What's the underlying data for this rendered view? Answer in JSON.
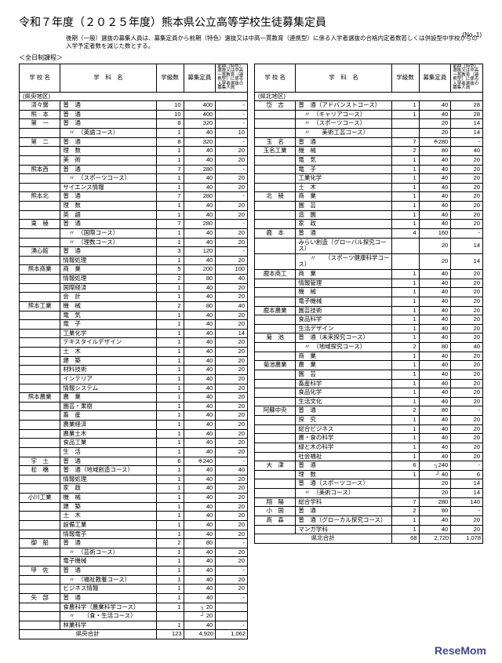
{
  "title": "令和７年度（２０２５年度）熊本県公立高等学校生徒募集定員",
  "page_number": "(No. 1)",
  "subtitle": "後期（一般）選抜の募集人員は、募集定員から前期（特色）選抜又は中高一貫教育（連携型）に係る入学者選抜の合格内定者数若しくは併設型中学校からの入学予定者数を減じた数とする。",
  "section_label": "＜全日制課程＞",
  "headers": {
    "school": "学 校 名",
    "dept": "学　科　名",
    "classes": "学級数",
    "capacity": "募集定員",
    "notes": "前期（特色）選抜又は中高一貫教育（連携型）に係る入学者選抜の募集人員"
  },
  "branding": "ReseMom",
  "left": {
    "district": "(県央地区)",
    "rows": [
      [
        "済々黌",
        "普　通",
        "10",
        "400",
        "-"
      ],
      [
        "熊　本",
        "普　通",
        "10",
        "400",
        "-"
      ],
      [
        "第　一",
        "普　通",
        "8",
        "320",
        "-"
      ],
      [
        "",
        "　〃　（英語コース）",
        "1",
        "40",
        "10"
      ],
      [
        "第　二",
        "普　通",
        "8",
        "320",
        "-"
      ],
      [
        "",
        "理　数",
        "1",
        "40",
        "20"
      ],
      [
        "",
        "美　術",
        "1",
        "40",
        "20"
      ],
      [
        "熊本西",
        "普　通",
        "7",
        "280",
        "-"
      ],
      [
        "",
        "　〃　（スポーツコース）",
        "1",
        "40",
        "20"
      ],
      [
        "",
        "サイエンス情報",
        "1",
        "40",
        "20"
      ],
      [
        "熊本北",
        "普　通",
        "7",
        "280",
        "-"
      ],
      [
        "",
        "理　数",
        "1",
        "40",
        "20"
      ],
      [
        "",
        "英　語",
        "1",
        "40",
        "20"
      ],
      [
        "東　稜",
        "普　通",
        "7",
        "280",
        "-"
      ],
      [
        "",
        "　〃　（国際コース）",
        "1",
        "40",
        "20"
      ],
      [
        "",
        "　〃　（理数コース）",
        "1",
        "40",
        "20"
      ],
      [
        "湧心館",
        "普　通",
        "3",
        "120",
        "-"
      ],
      [
        "",
        "情報処理",
        "1",
        "40",
        "20"
      ],
      [
        "熊本商業",
        "商　業",
        "5",
        "200",
        "100"
      ],
      [
        "",
        "情報処理",
        "2",
        "80",
        "40"
      ],
      [
        "",
        "国際経済",
        "1",
        "40",
        "20"
      ],
      [
        "",
        "会　計",
        "1",
        "40",
        "20"
      ],
      [
        "熊本工業",
        "機　械",
        "2",
        "80",
        "40"
      ],
      [
        "",
        "電　気",
        "1",
        "40",
        "20"
      ],
      [
        "",
        "電　子",
        "1",
        "40",
        "20"
      ],
      [
        "",
        "工業化学",
        "1",
        "40",
        "14"
      ],
      [
        "",
        "テキスタイルデザイン",
        "1",
        "40",
        "20"
      ],
      [
        "",
        "土　木",
        "1",
        "40",
        "20"
      ],
      [
        "",
        "建　築",
        "1",
        "40",
        "20"
      ],
      [
        "",
        "材料技術",
        "1",
        "40",
        "20"
      ],
      [
        "",
        "インテリア",
        "1",
        "40",
        "20"
      ],
      [
        "",
        "情報システム",
        "1",
        "40",
        "20"
      ],
      [
        "熊本農業",
        "農　業",
        "1",
        "40",
        "20"
      ],
      [
        "",
        "園芸・果樹",
        "1",
        "40",
        "20"
      ],
      [
        "",
        "畜　産",
        "1",
        "40",
        "20"
      ],
      [
        "",
        "農業経済",
        "1",
        "40",
        "20"
      ],
      [
        "",
        "農業土木",
        "1",
        "40",
        "20"
      ],
      [
        "",
        "食品工業",
        "1",
        "40",
        "20"
      ],
      [
        "",
        "生　活",
        "1",
        "40",
        "20"
      ],
      [
        "宇　土",
        "普　通",
        "6",
        "※240",
        "-"
      ],
      [
        "松　橋",
        "普　通（地域創造コース）",
        "1",
        "40",
        "40"
      ],
      [
        "",
        "情報処理",
        "1",
        "40",
        "20"
      ],
      [
        "",
        "家　政",
        "1",
        "40",
        "20"
      ],
      [
        "小川工業",
        "機　械",
        "1",
        "40",
        "20"
      ],
      [
        "",
        "建　築",
        "1",
        "40",
        "20"
      ],
      [
        "",
        "土　木",
        "1",
        "40",
        "20"
      ],
      [
        "",
        "設備工業",
        "1",
        "40",
        "20"
      ],
      [
        "",
        "情報電子",
        "1",
        "40",
        "20"
      ],
      [
        "御　船",
        "普　通",
        "2",
        "80",
        "-"
      ],
      [
        "",
        "　〃　（芸術コース）",
        "1",
        "40",
        "20"
      ],
      [
        "",
        "電子機械",
        "1",
        "40",
        "20"
      ],
      [
        "甲　佐",
        "普　通",
        "1",
        "40",
        "-"
      ],
      [
        "",
        "　〃　（福祉教養コース）",
        "1",
        "40",
        "20"
      ],
      [
        "",
        "ビジネス情報",
        "1",
        "40",
        "20"
      ],
      [
        "矢　部",
        "普　通",
        "1",
        "40",
        "-"
      ],
      [
        "",
        "食農科学（農業科学コース）",
        "1",
        "┐ 20",
        ""
      ],
      [
        "",
        "　〃　　（食・生活コース）",
        "",
        "┘ 20",
        ""
      ],
      [
        "",
        "林業科学",
        "1",
        "40",
        "-"
      ]
    ],
    "total": [
      "県央合計",
      "",
      "123",
      "4,920",
      "1,062"
    ]
  },
  "right": {
    "district": "(県北地区)",
    "rows": [
      [
        "岱　志",
        "普　通（アドバンストコース）",
        "1",
        "40",
        "28"
      ],
      [
        "",
        "　〃　（キャリアコース）",
        "1",
        "40",
        "28"
      ],
      [
        "",
        "　〃　（スポーツコース）",
        "",
        "20",
        "14"
      ],
      [
        "",
        "　〃　　美術工芸コース）",
        "",
        "20",
        "14"
      ],
      [
        "玉　名",
        "普　通",
        "7",
        "※280",
        "-"
      ],
      [
        "玉名工業",
        "機　械",
        "2",
        "80",
        "40"
      ],
      [
        "",
        "電　気",
        "1",
        "40",
        "20"
      ],
      [
        "",
        "電　子",
        "1",
        "40",
        "20"
      ],
      [
        "",
        "工業化学",
        "1",
        "40",
        "20"
      ],
      [
        "",
        "土　木",
        "1",
        "40",
        "20"
      ],
      [
        "北　稜",
        "商　業",
        "1",
        "40",
        "20"
      ],
      [
        "",
        "園　芸",
        "1",
        "40",
        "20"
      ],
      [
        "",
        "造　園",
        "1",
        "40",
        "20"
      ],
      [
        "",
        "家　政",
        "1",
        "40",
        "20"
      ],
      [
        "鹿　本",
        "普　通",
        "4",
        "160",
        "-"
      ],
      [
        "",
        "みらい創造（グローバル探究コース）",
        "",
        "20",
        "14"
      ],
      [
        "",
        "　　〃　　（スポーツ健康科学コース）",
        "",
        "20",
        "14"
      ],
      [
        "鹿本商工",
        "商　業",
        "1",
        "40",
        "20"
      ],
      [
        "",
        "情報管理",
        "1",
        "40",
        "20"
      ],
      [
        "",
        "機　械",
        "1",
        "40",
        "20"
      ],
      [
        "",
        "電子機械",
        "1",
        "40",
        "20"
      ],
      [
        "鹿本農業",
        "園芸技術",
        "1",
        "40",
        "20"
      ],
      [
        "",
        "食品科学",
        "1",
        "40",
        "20"
      ],
      [
        "",
        "生活デザイン",
        "1",
        "40",
        "20"
      ],
      [
        "菊　池",
        "普　通（未来探究コース）",
        "1",
        "40",
        "20"
      ],
      [
        "",
        "　〃　（地域探究コース）",
        "2",
        "80",
        "40"
      ],
      [
        "",
        "商　業",
        "1",
        "40",
        "20"
      ],
      [
        "菊池農業",
        "農　業",
        "1",
        "40",
        "20"
      ],
      [
        "",
        "園　芸",
        "1",
        "40",
        "20"
      ],
      [
        "",
        "畜産科学",
        "1",
        "40",
        "20"
      ],
      [
        "",
        "食品化学",
        "1",
        "40",
        "20"
      ],
      [
        "",
        "生活文化",
        "1",
        "40",
        "20"
      ],
      [
        "阿蘇中央",
        "普　通",
        "2",
        "80",
        "-"
      ],
      [
        "",
        "探　究",
        "1",
        "40",
        "20"
      ],
      [
        "",
        "総合ビジネス",
        "1",
        "40",
        "20"
      ],
      [
        "",
        "農・食の科学",
        "1",
        "40",
        "20"
      ],
      [
        "",
        "緑と木の科学",
        "1",
        "40",
        "20"
      ],
      [
        "",
        "社会福祉",
        "1",
        "40",
        "20"
      ],
      [
        "大　津",
        "普　通",
        "6",
        "┐240",
        "-"
      ],
      [
        "",
        "理　数",
        "1",
        "┘ 40",
        "6"
      ],
      [
        "",
        "普　通（スポーツコース）",
        "",
        "20",
        "14"
      ],
      [
        "",
        "　〃　（美術コース）",
        "",
        "20",
        "14"
      ],
      [
        "翔　陽",
        "総合学科",
        "7",
        "280",
        "140"
      ],
      [
        "小　国",
        "普　通",
        "2",
        "80",
        "-"
      ],
      [
        "高　森",
        "普　通（グローカル探究コース）",
        "1",
        "40",
        "20"
      ],
      [
        "",
        "マンガ学科",
        "1",
        "40",
        "20"
      ]
    ],
    "total": [
      "県北合計",
      "",
      "68",
      "2,720",
      "1,078"
    ]
  }
}
